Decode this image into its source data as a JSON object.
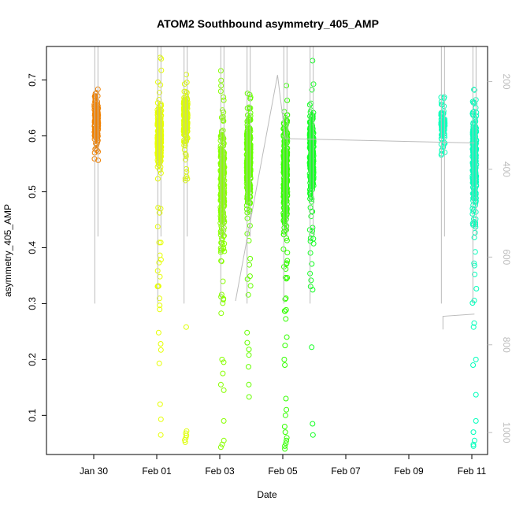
{
  "chart_data": {
    "type": "scatter",
    "title": "ATOM2 Southbound asymmetry_405_AMP",
    "xlabel": "Date",
    "ylabel": "asymmetry_405_AMP",
    "x_axis": {
      "unit": "date",
      "range": [
        "2017-01-28T12:00",
        "2017-02-11T12:00"
      ],
      "ticks": [
        "Jan 30",
        "Feb 01",
        "Feb 03",
        "Feb 05",
        "Feb 07",
        "Feb 09",
        "Feb 11"
      ]
    },
    "y_axis": {
      "range": [
        0.03,
        0.76
      ],
      "ticks": [
        0.1,
        0.2,
        0.3,
        0.4,
        0.5,
        0.6,
        0.7
      ],
      "tick_labels": [
        "0.1",
        "0.2",
        "0.3",
        "0.4",
        "0.5",
        "0.6",
        "0.7"
      ]
    },
    "y2_axis": {
      "color": "#bdbdbd",
      "inverted": true,
      "range": [
        1050,
        120
      ],
      "ticks": [
        200,
        400,
        600,
        800,
        1000
      ],
      "tick_labels": [
        "200",
        "400",
        "600",
        "800",
        "1000"
      ]
    },
    "grid": false,
    "legend": "none",
    "series": [
      {
        "date": "2017-01-30T02:00",
        "color": "#f08000",
        "center": 0.625,
        "spread": 0.03,
        "low": 0.53,
        "high": 0.69,
        "n": 160,
        "outliers": []
      },
      {
        "date": "2017-02-01T02:00",
        "color": "#e6ff00",
        "center": 0.6,
        "spread": 0.04,
        "low": 0.28,
        "high": 0.75,
        "n": 260,
        "outliers": [
          0.248,
          0.228,
          0.217,
          0.193,
          0.12,
          0.093,
          0.065
        ]
      },
      {
        "date": "2017-02-01T22:00",
        "color": "#ddff00",
        "center": 0.63,
        "spread": 0.035,
        "low": 0.52,
        "high": 0.71,
        "n": 200,
        "outliers": [
          0.258,
          0.072,
          0.068,
          0.064,
          0.06,
          0.056,
          0.052
        ]
      },
      {
        "date": "2017-02-03T02:00",
        "color": "#88ff00",
        "center": 0.52,
        "spread": 0.085,
        "low": 0.24,
        "high": 0.72,
        "n": 300,
        "outliers": [
          0.2,
          0.195,
          0.175,
          0.155,
          0.145,
          0.09,
          0.055,
          0.048,
          0.043
        ]
      },
      {
        "date": "2017-02-03T22:00",
        "color": "#66ff00",
        "center": 0.56,
        "spread": 0.07,
        "low": 0.3,
        "high": 0.71,
        "n": 320,
        "outliers": [
          0.248,
          0.23,
          0.218,
          0.208,
          0.187,
          0.155,
          0.133
        ]
      },
      {
        "date": "2017-02-05T02:00",
        "color": "#33ff00",
        "center": 0.54,
        "spread": 0.08,
        "low": 0.27,
        "high": 0.69,
        "n": 320,
        "outliers": [
          0.24,
          0.225,
          0.2,
          0.19,
          0.13,
          0.11,
          0.1,
          0.08,
          0.07,
          0.06,
          0.055,
          0.05,
          0.045,
          0.04
        ]
      },
      {
        "date": "2017-02-05T22:00",
        "color": "#11ff22",
        "center": 0.56,
        "spread": 0.06,
        "low": 0.3,
        "high": 0.74,
        "n": 280,
        "outliers": [
          0.222,
          0.085,
          0.065
        ]
      },
      {
        "date": "2017-02-10T02:00",
        "color": "#11ffbb",
        "center": 0.615,
        "spread": 0.03,
        "low": 0.55,
        "high": 0.685,
        "n": 90,
        "outliers": []
      },
      {
        "date": "2017-02-11T02:00",
        "color": "#00ffbb",
        "center": 0.56,
        "spread": 0.07,
        "low": 0.29,
        "high": 0.69,
        "n": 280,
        "outliers": [
          0.265,
          0.258,
          0.2,
          0.19,
          0.137,
          0.09,
          0.07,
          0.055,
          0.048,
          0.045
        ]
      }
    ]
  }
}
